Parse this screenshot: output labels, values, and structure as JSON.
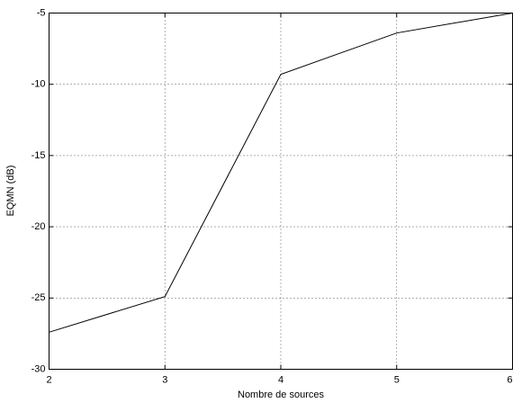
{
  "chart_data": {
    "type": "line",
    "x_label": "Nombre de sources",
    "y_label": "EQMN (dB)",
    "x": [
      2,
      3,
      4,
      5,
      6
    ],
    "series": [
      {
        "color": "#000000",
        "values": [
          -27.4,
          -24.9,
          -9.3,
          -6.4,
          -5.0
        ]
      }
    ],
    "xlim": [
      2,
      6
    ],
    "xticks": [
      2,
      3,
      4,
      5,
      6
    ],
    "ylim": [
      -30,
      -5
    ],
    "yticks": [
      -30,
      -25,
      -20,
      -15,
      -10,
      -5
    ],
    "grid": true
  }
}
